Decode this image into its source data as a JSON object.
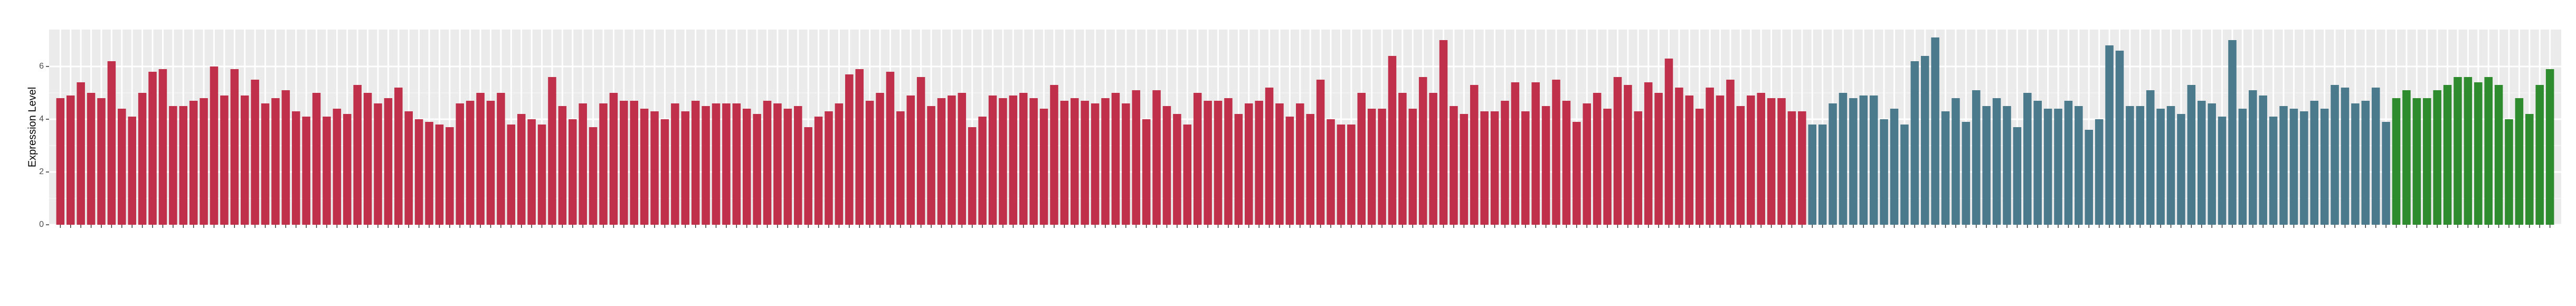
{
  "chart_data": {
    "type": "bar",
    "y_label": "Expression Level",
    "ylim": [
      0,
      7.4
    ],
    "yticks": [
      0,
      2,
      4,
      6
    ],
    "grid": true,
    "groups": [
      {
        "color": "#c0304a",
        "categories": [
          null,
          null,
          null,
          null,
          null,
          null,
          null,
          null,
          null,
          null,
          null,
          null,
          null,
          null,
          null,
          null,
          null,
          null,
          null,
          null,
          null,
          null,
          null,
          null,
          null,
          null,
          null,
          null,
          null,
          null,
          null,
          null,
          null,
          null,
          null,
          null,
          null,
          null,
          null,
          null,
          null,
          null,
          null,
          null,
          null,
          null,
          null,
          null,
          null,
          null,
          null,
          null,
          null,
          null,
          null,
          null,
          null,
          null,
          null,
          null,
          null,
          null,
          null,
          null,
          null,
          null,
          null,
          null,
          null,
          null,
          null,
          null,
          null,
          null,
          null,
          null,
          null,
          null,
          null,
          null,
          null,
          null,
          null,
          null,
          null,
          null,
          null,
          null,
          null,
          null,
          null,
          null,
          null,
          null,
          null,
          null,
          null,
          null,
          null,
          null,
          null,
          null,
          null,
          null,
          null,
          null,
          null,
          null,
          null,
          null,
          null,
          null,
          null,
          null,
          null,
          null,
          null,
          null,
          null,
          null,
          null,
          null,
          null,
          null,
          null,
          null,
          null,
          null,
          null,
          null,
          null,
          null,
          null,
          null,
          null,
          null,
          null,
          null,
          null,
          null,
          null,
          null,
          null,
          null,
          null,
          null,
          null,
          null,
          null,
          null,
          null,
          null,
          null,
          null,
          null,
          null,
          null,
          null,
          null,
          null,
          null,
          null,
          null,
          null,
          null,
          null,
          null,
          null,
          null,
          null,
          null
        ],
        "values": [
          4.8,
          4.9,
          5.4,
          5.0,
          4.8,
          6.2,
          4.4,
          4.1,
          5.0,
          5.8,
          5.9,
          4.5,
          4.5,
          4.7,
          4.8,
          6.0,
          4.9,
          5.9,
          4.9,
          5.5,
          4.6,
          4.8,
          5.1,
          4.3,
          4.1,
          5.0,
          4.1,
          4.4,
          4.2,
          5.3,
          5.0,
          4.6,
          4.8,
          5.2,
          4.3,
          4.0,
          3.9,
          3.8,
          3.7,
          4.6,
          4.7,
          5.0,
          4.7,
          5.0,
          3.8,
          4.2,
          4.0,
          3.8,
          5.6,
          4.5,
          4.0,
          4.6,
          3.7,
          4.6,
          5.0,
          4.7,
          4.7,
          4.4,
          4.3,
          4.0,
          4.6,
          4.3,
          4.7,
          4.5,
          4.6,
          4.6,
          4.6,
          4.4,
          4.2,
          4.7,
          4.6,
          4.4,
          4.5,
          3.7,
          4.1,
          4.3,
          4.6,
          5.7,
          5.9,
          4.7,
          5.0,
          5.8,
          4.3,
          4.9,
          5.6,
          4.5,
          4.8,
          4.9,
          5.0,
          3.7,
          4.1,
          4.9,
          4.8,
          4.9,
          5.0,
          4.8,
          4.4,
          5.3,
          4.7,
          4.8,
          4.7,
          4.6,
          4.8,
          5.0,
          4.6,
          5.1,
          4.0,
          5.1,
          4.5,
          4.2,
          3.8,
          5.0,
          4.7,
          4.7,
          4.8,
          4.2,
          4.6,
          4.7,
          5.2,
          4.6,
          4.1,
          4.6,
          4.2,
          5.5,
          4.0,
          3.8,
          3.8,
          5.0,
          4.4,
          4.4,
          6.4,
          5.0,
          4.4,
          5.6,
          5.0,
          7.0,
          4.5,
          4.2,
          5.3,
          4.3,
          4.3,
          4.7,
          5.4,
          4.3,
          5.4,
          4.5,
          5.5,
          4.7,
          3.9,
          4.6,
          5.0,
          4.4,
          5.6,
          5.3,
          4.3,
          5.4,
          5.0,
          6.3,
          5.2,
          4.9,
          4.4,
          5.2,
          4.9,
          5.5,
          4.5,
          4.9,
          5.0,
          4.8,
          4.8,
          4.3,
          4.3
        ]
      },
      {
        "color": "#4a7a8c",
        "categories": [
          null,
          null,
          null,
          null,
          null,
          null,
          null,
          null,
          null,
          null,
          null,
          null,
          null,
          null,
          null,
          null,
          null,
          null,
          null,
          null,
          null,
          null,
          null,
          null,
          null,
          null,
          null,
          null,
          null,
          null,
          null,
          null,
          null,
          null,
          null,
          null,
          null,
          null,
          null,
          null,
          null,
          null,
          null,
          null,
          null,
          null,
          null,
          null,
          null,
          null,
          null,
          null,
          null,
          null,
          null,
          null,
          null
        ],
        "values": [
          3.8,
          3.8,
          4.6,
          5.0,
          4.8,
          4.9,
          4.9,
          4.0,
          4.4,
          3.8,
          6.2,
          6.4,
          7.1,
          4.3,
          4.8,
          3.9,
          5.1,
          4.5,
          4.8,
          4.5,
          3.7,
          5.0,
          4.7,
          4.4,
          4.4,
          4.7,
          4.5,
          3.6,
          4.0,
          6.8,
          6.6,
          4.5,
          4.5,
          5.1,
          4.4,
          4.5,
          4.2,
          5.3,
          4.7,
          4.6,
          4.1,
          7.0,
          4.4,
          5.1,
          4.9,
          4.1,
          4.5,
          4.4,
          4.3,
          4.7,
          4.4,
          5.3,
          5.2,
          4.6,
          4.7,
          5.2,
          3.9
        ]
      },
      {
        "color": "#2e8b2e",
        "categories": [
          null,
          null,
          null,
          null,
          null,
          null,
          null,
          null,
          null,
          null,
          null,
          null,
          null,
          null,
          null,
          null
        ],
        "values": [
          4.8,
          5.1,
          4.8,
          4.8,
          5.1,
          5.3,
          5.6,
          5.6,
          5.4,
          5.6,
          5.3,
          4.0,
          4.8,
          4.2,
          5.3,
          5.9
        ]
      }
    ]
  }
}
